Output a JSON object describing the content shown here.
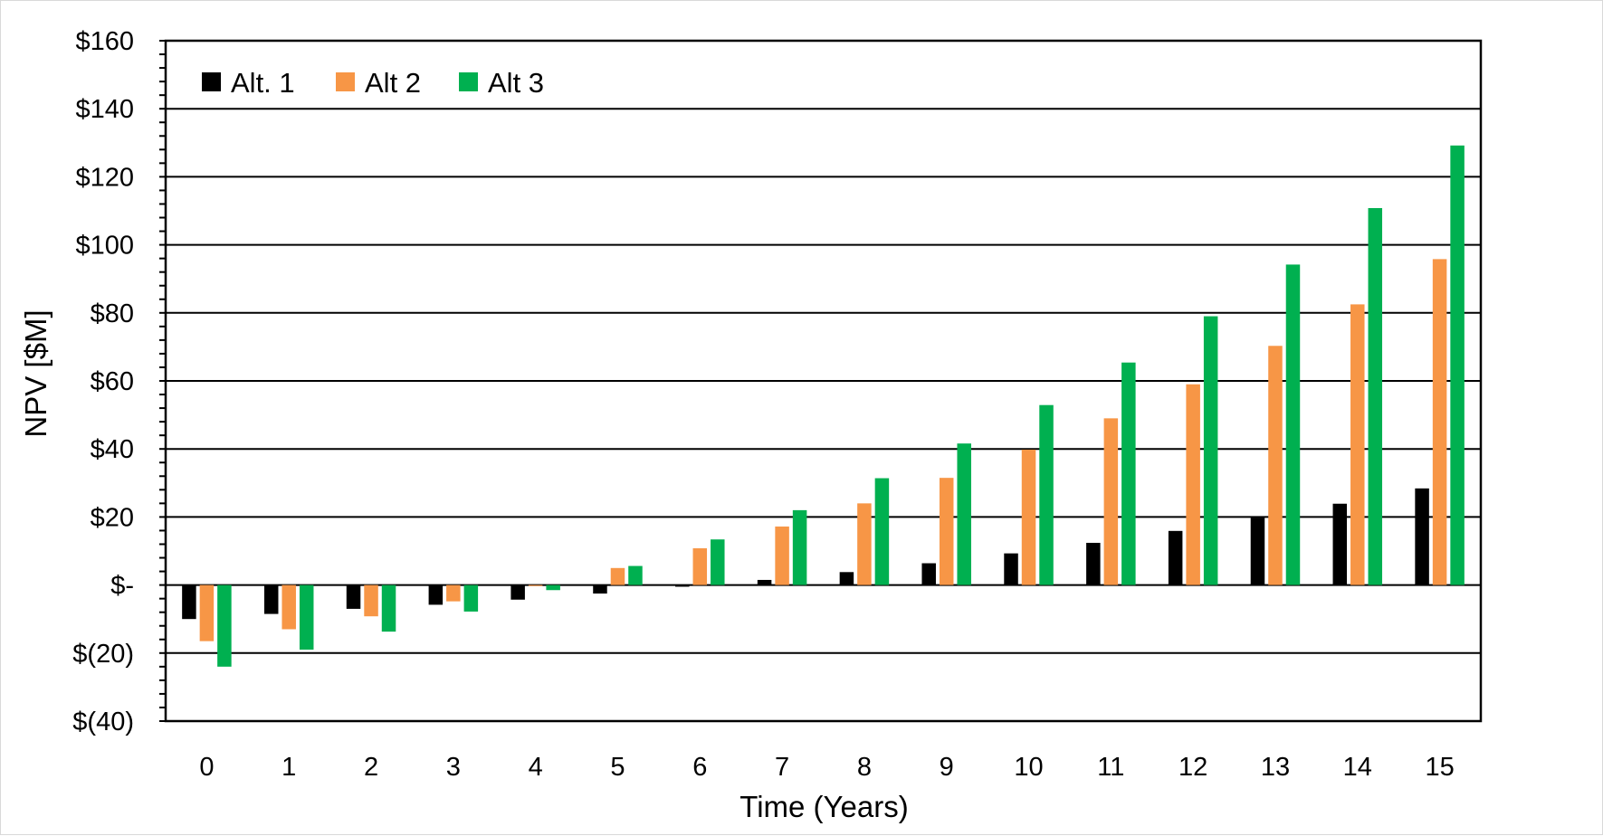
{
  "chart_data": {
    "type": "bar",
    "title": "",
    "xlabel": "Time (Years)",
    "ylabel": "NPV [$M]",
    "categories": [
      "0",
      "1",
      "2",
      "3",
      "4",
      "5",
      "6",
      "7",
      "8",
      "9",
      "10",
      "11",
      "12",
      "13",
      "14",
      "15"
    ],
    "series": [
      {
        "name": "Alt. 1",
        "color": "#000000",
        "values": [
          -10,
          -8.5,
          -7,
          -5.8,
          -4.3,
          -2.5,
          -0.5,
          1.5,
          3.8,
          6.4,
          9.3,
          12.4,
          15.9,
          19.8,
          23.9,
          28.4
        ]
      },
      {
        "name": "Alt 2",
        "color": "#F79646",
        "values": [
          -16.5,
          -13,
          -9.2,
          -4.8,
          -0.3,
          5,
          10.8,
          17.2,
          24,
          31.5,
          39.8,
          49,
          59,
          70.3,
          82.5,
          95.8
        ]
      },
      {
        "name": "Alt 3",
        "color": "#00B050",
        "values": [
          -24,
          -19,
          -13.7,
          -7.8,
          -1.5,
          5.6,
          13.4,
          22,
          31.4,
          41.6,
          52.9,
          65.4,
          79,
          94.2,
          110.8,
          129.2
        ]
      }
    ],
    "ylim": [
      -40,
      160
    ],
    "yticks": [
      -40,
      -20,
      0,
      20,
      40,
      60,
      80,
      100,
      120,
      140,
      160
    ],
    "ytick_labels": [
      "$(40)",
      "$(20)",
      "$-",
      "$20",
      "$40",
      "$60",
      "$80",
      "$100",
      "$120",
      "$140",
      "$160"
    ],
    "grid": true,
    "legend_position": "top-left"
  }
}
